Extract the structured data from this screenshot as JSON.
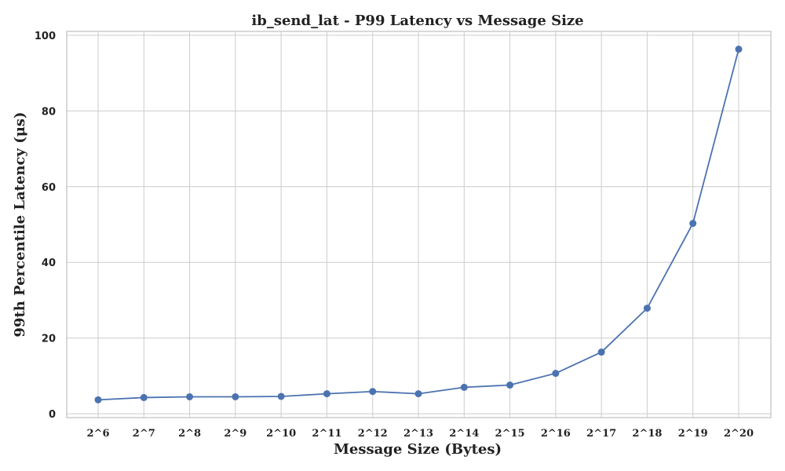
{
  "chart_data": {
    "type": "line",
    "title": "ib_send_lat - P99 Latency vs Message Size",
    "xlabel": "Message Size (Bytes)",
    "ylabel": "99th Percentile Latency (μs)",
    "categories": [
      "2^6",
      "2^7",
      "2^8",
      "2^9",
      "2^10",
      "2^11",
      "2^12",
      "2^13",
      "2^14",
      "2^15",
      "2^16",
      "2^17",
      "2^18",
      "2^19",
      "2^20"
    ],
    "series": [
      {
        "name": "P99 Latency",
        "color": "#4c72b0",
        "values": [
          3.7,
          4.3,
          4.5,
          4.5,
          4.6,
          5.3,
          5.9,
          5.3,
          7.0,
          7.6,
          10.7,
          16.3,
          27.9,
          50.3,
          96.3
        ]
      }
    ],
    "ylim": [
      -1,
      101
    ],
    "yticks": [
      0,
      20,
      40,
      60,
      80,
      100
    ],
    "grid": true
  }
}
